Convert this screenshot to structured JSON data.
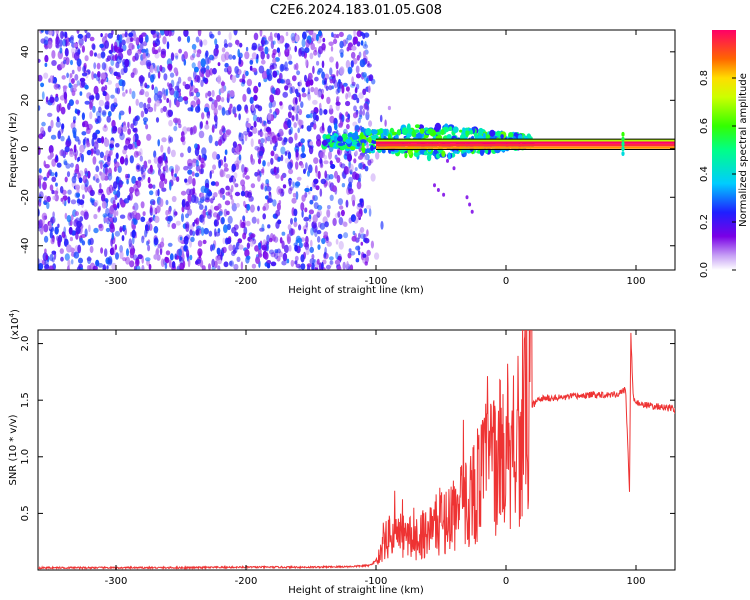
{
  "title": "C2E6.2024.183.01.05.G08",
  "chart_data": [
    {
      "type": "heatmap",
      "xlabel": "Height of straight line (km)",
      "ylabel": "Frequency (Hz)",
      "xlim": [
        -360,
        130
      ],
      "ylim": [
        -50,
        49
      ],
      "xticks": [
        -300,
        -200,
        -100,
        0,
        100
      ],
      "yticks": [
        -40,
        -20,
        0,
        20,
        40
      ],
      "grid": false,
      "colorbar": {
        "label": "Normalized spectral amplitude",
        "ticks": [
          0.0,
          0.2,
          0.4,
          0.6,
          0.8
        ],
        "range": [
          0,
          1
        ]
      },
      "regions": [
        {
          "name": "noise",
          "x": [
            -360,
            -105
          ],
          "freq": [
            -50,
            49
          ],
          "amplitude": [
            0.05,
            0.3
          ]
        },
        {
          "name": "signal",
          "x": [
            -140,
            20
          ],
          "freq": [
            -8,
            10
          ],
          "amplitude": [
            0.2,
            0.65
          ]
        },
        {
          "name": "tone",
          "x": [
            -100,
            130
          ],
          "freq": [
            0,
            3
          ],
          "amplitude": [
            0.8,
            1.0
          ]
        }
      ]
    },
    {
      "type": "line",
      "xlabel": "Height of straight line (km)",
      "ylabel": "SNR (10 * v/v)",
      "multiplier": "(x10",
      "multiplier_exp": "4",
      "multiplier_close": ")",
      "xlim": [
        -360,
        130
      ],
      "ylim": [
        0,
        2.12
      ],
      "xticks": [
        -300,
        -200,
        -100,
        0,
        100
      ],
      "yticks": [
        0.5,
        1.0,
        1.5,
        2.0
      ],
      "color": "#ee3333",
      "grid": false,
      "series": [
        {
          "x": [
            -360,
            -300,
            -250,
            -200,
            -150,
            -120,
            -105,
            -100,
            -95,
            -90,
            -85,
            -80,
            -70,
            -60,
            -50,
            -40,
            -30,
            -20,
            -15,
            -10,
            -5,
            0,
            5,
            10,
            15,
            20,
            25,
            30,
            40,
            50,
            60,
            70,
            80,
            88,
            92,
            95,
            96,
            98,
            100,
            110,
            120,
            130
          ],
          "values": [
            0.02,
            0.02,
            0.02,
            0.025,
            0.025,
            0.03,
            0.04,
            0.08,
            0.2,
            0.3,
            0.32,
            0.3,
            0.28,
            0.35,
            0.42,
            0.5,
            0.6,
            0.8,
            0.9,
            0.95,
            1.0,
            1.1,
            1.2,
            1.25,
            1.35,
            1.45,
            1.5,
            1.52,
            1.52,
            1.53,
            1.54,
            1.55,
            1.55,
            1.56,
            1.6,
            0.7,
            2.1,
            1.5,
            1.48,
            1.45,
            1.44,
            1.42
          ]
        }
      ]
    }
  ]
}
